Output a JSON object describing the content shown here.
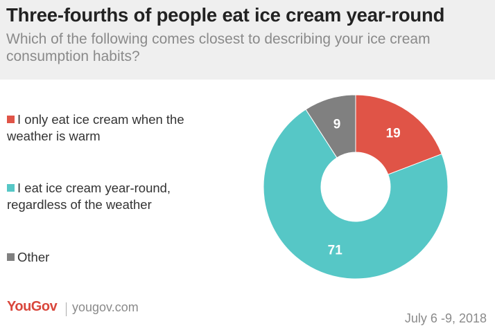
{
  "title": "Three-fourths of people eat ice cream year-round",
  "subtitle": "Which of the following comes closest to describing your ice cream consumption habits?",
  "chart_data": {
    "type": "pie",
    "variant": "donut",
    "title": "Three-fourths of people eat ice cream year-round",
    "subtitle": "Which of the following comes closest to describing your ice cream consumption habits?",
    "legend_position": "left",
    "slices": [
      {
        "label": "I only eat ice cream when the weather is warm",
        "value": 19,
        "color": "#e05447"
      },
      {
        "label": "I eat ice cream year-round, regardless of the weather",
        "value": 71,
        "color": "#56c7c6"
      },
      {
        "label": "Other",
        "value": 9,
        "color": "#808080"
      }
    ]
  },
  "footer": {
    "brand": "YouGov",
    "url": "yougov.com",
    "date": "July 6 -9, 2018"
  }
}
